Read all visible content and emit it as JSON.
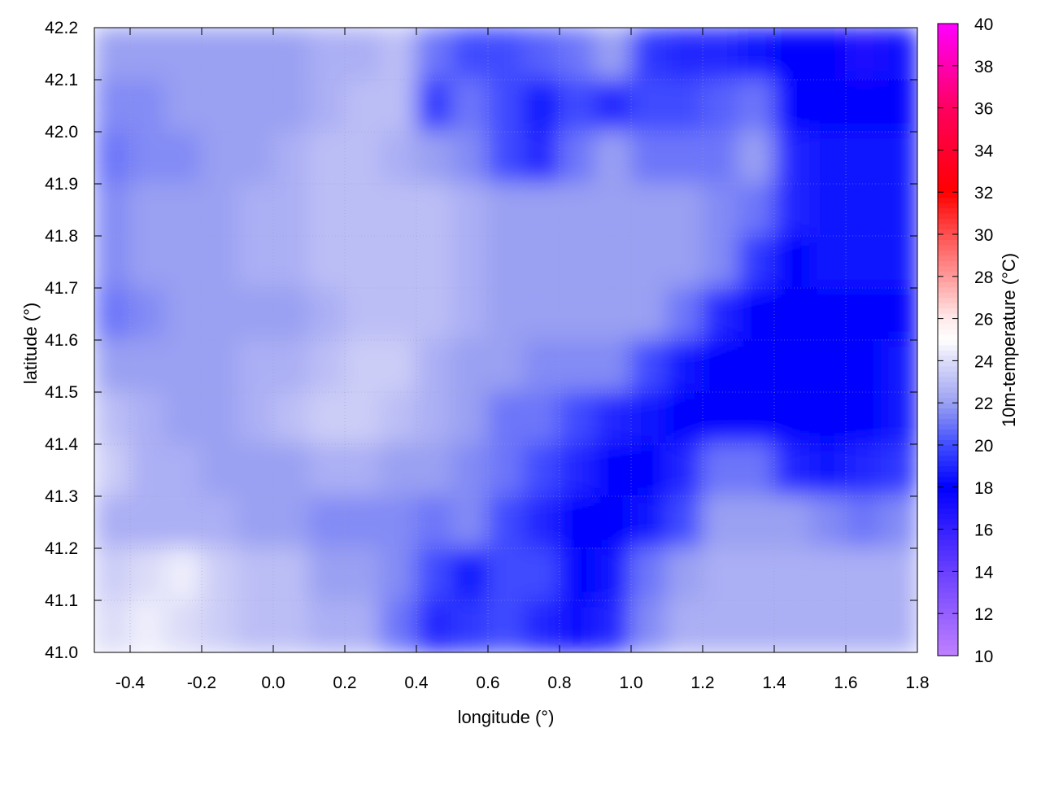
{
  "chart_data": {
    "type": "heatmap",
    "xlabel": "longitude (°)",
    "ylabel": "latitude (°)",
    "colorbar_label": "10m-temperature (°C)",
    "xlim": [
      -0.5,
      1.8
    ],
    "ylim": [
      41.0,
      42.2
    ],
    "clim": [
      10,
      40
    ],
    "grid": true,
    "contours": true,
    "x_ticks": [
      "-0.4",
      "-0.2",
      "0.0",
      "0.2",
      "0.4",
      "0.6",
      "0.8",
      "1.0",
      "1.2",
      "1.4",
      "1.6",
      "1.8"
    ],
    "y_ticks": [
      "41.0",
      "41.1",
      "41.2",
      "41.3",
      "41.4",
      "41.5",
      "41.6",
      "41.7",
      "41.8",
      "41.9",
      "42.0",
      "42.1",
      "42.2"
    ],
    "colorbar_ticks": [
      "10",
      "12",
      "14",
      "16",
      "18",
      "20",
      "22",
      "24",
      "26",
      "28",
      "30",
      "32",
      "34",
      "36",
      "38",
      "40"
    ],
    "colormap": [
      {
        "value": 10,
        "color": "#c080ff"
      },
      {
        "value": 14,
        "color": "#6a40ff"
      },
      {
        "value": 18,
        "color": "#0000ff"
      },
      {
        "value": 20,
        "color": "#3f4cff"
      },
      {
        "value": 22,
        "color": "#9aa0f2"
      },
      {
        "value": 24,
        "color": "#dcdcf8"
      },
      {
        "value": 25,
        "color": "#ffffff"
      },
      {
        "value": 26,
        "color": "#ffeaea"
      },
      {
        "value": 28,
        "color": "#ff9a9a"
      },
      {
        "value": 30,
        "color": "#ff5050"
      },
      {
        "value": 32,
        "color": "#ff0000"
      },
      {
        "value": 36,
        "color": "#ff0060"
      },
      {
        "value": 40,
        "color": "#ff00ff"
      }
    ],
    "x": [
      -0.45,
      -0.35,
      -0.25,
      -0.15,
      -0.05,
      0.05,
      0.15,
      0.25,
      0.35,
      0.45,
      0.55,
      0.65,
      0.75,
      0.85,
      0.95,
      1.05,
      1.15,
      1.25,
      1.35,
      1.45,
      1.55,
      1.65,
      1.75
    ],
    "y": [
      42.15,
      42.05,
      41.95,
      41.85,
      41.75,
      41.65,
      41.55,
      41.45,
      41.35,
      41.25,
      41.15,
      41.05
    ],
    "values": [
      [
        22,
        22,
        22,
        22,
        22,
        22,
        22.5,
        22.5,
        23,
        21,
        20,
        20,
        20.5,
        21,
        22,
        19.5,
        19,
        19,
        18.5,
        18,
        18,
        17,
        17.5
      ],
      [
        21.5,
        21.5,
        22,
        22,
        22,
        22,
        22.5,
        23,
        23,
        19.5,
        21,
        20,
        18.5,
        20,
        19,
        20,
        20,
        20.5,
        21,
        18,
        18,
        18,
        18
      ],
      [
        21,
        21.5,
        21.5,
        22,
        22,
        22.5,
        23,
        23,
        22.5,
        22,
        21.5,
        20,
        19,
        21,
        22,
        21,
        21,
        21,
        22,
        19,
        18.5,
        18.5,
        18.5
      ],
      [
        21.5,
        22,
        22,
        22,
        22.5,
        22.5,
        23,
        23,
        23,
        23,
        22.5,
        22,
        22,
        22,
        22,
        22,
        22,
        21.5,
        21,
        19,
        18.5,
        18.5,
        18.5
      ],
      [
        21.5,
        22,
        22,
        22,
        22.5,
        22.5,
        23,
        23,
        23,
        23,
        22.5,
        22,
        22,
        22,
        22,
        22,
        22,
        21.5,
        19.5,
        18,
        18.5,
        18.5,
        18.5
      ],
      [
        21,
        21.5,
        22,
        22,
        22,
        22,
        22.5,
        23,
        23,
        23,
        22.5,
        22,
        22,
        22,
        22,
        22,
        21,
        19,
        18,
        18,
        18,
        18,
        18
      ],
      [
        22,
        22,
        22,
        22,
        22.5,
        22.5,
        23,
        23.5,
        23.5,
        22.5,
        22,
        22,
        21.5,
        21.5,
        21.5,
        20,
        18.5,
        18,
        18,
        18,
        18,
        18,
        18.5
      ],
      [
        23,
        22.5,
        22,
        22,
        22.5,
        23,
        23.5,
        23.5,
        23,
        22.5,
        22,
        21,
        21,
        20,
        19,
        18.5,
        18,
        18,
        18,
        18,
        18,
        18,
        18.5
      ],
      [
        23.5,
        22.5,
        22.5,
        22,
        22,
        22,
        22.5,
        22.5,
        22,
        22,
        21.5,
        21,
        20,
        19,
        18,
        18,
        19,
        21,
        21,
        19,
        18.5,
        19,
        19.5
      ],
      [
        22.5,
        22.5,
        22.5,
        22.5,
        22,
        22,
        21.5,
        21.5,
        21.5,
        21,
        21.5,
        20,
        19,
        18,
        18,
        18.5,
        20,
        22,
        22,
        22,
        21.5,
        21,
        21.5
      ],
      [
        23.5,
        24,
        24.5,
        23.5,
        23,
        23,
        22,
        22,
        21.5,
        20,
        18.5,
        20,
        20,
        18,
        18.5,
        21,
        22,
        22.5,
        22.5,
        22.5,
        22.5,
        22.5,
        22.5
      ],
      [
        24,
        24.5,
        24,
        23.5,
        23,
        23,
        22.5,
        22.5,
        21,
        19,
        19.5,
        20,
        19,
        17.5,
        19,
        21.5,
        22.5,
        22.5,
        22.5,
        22.5,
        22.5,
        22.5,
        22.5
      ]
    ]
  }
}
